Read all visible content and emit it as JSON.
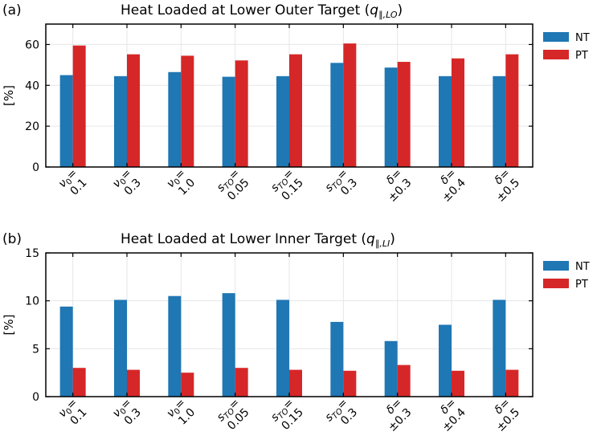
{
  "chart_data": [
    {
      "type": "bar",
      "panel": "(a)",
      "title": "Heat Loaded at Lower Outer Target (q∥,LO)",
      "title_main": "Heat Loaded at Lower Outer Target (",
      "title_q": "q",
      "title_sub": "∥,LO",
      "title_close": ")",
      "ylabel": "[%]",
      "ylim": [
        0,
        70
      ],
      "yticks": [
        0,
        20,
        40,
        60
      ],
      "categories": [
        {
          "sym": "ν",
          "sub": "0",
          "eq": "=",
          "val": "0.1"
        },
        {
          "sym": "ν",
          "sub": "0",
          "eq": "=",
          "val": "0.3"
        },
        {
          "sym": "ν",
          "sub": "0",
          "eq": "=",
          "val": "1.0"
        },
        {
          "sym": "s",
          "sub": "TO",
          "eq": "=",
          "val": "0.05"
        },
        {
          "sym": "s",
          "sub": "TO",
          "eq": "=",
          "val": "0.15"
        },
        {
          "sym": "s",
          "sub": "TO",
          "eq": "=",
          "val": "0.3"
        },
        {
          "sym": "δ",
          "sub": "",
          "eq": "=",
          "val": "±0.3"
        },
        {
          "sym": "δ",
          "sub": "",
          "eq": "=",
          "val": "±0.4"
        },
        {
          "sym": "δ",
          "sub": "",
          "eq": "=",
          "val": "±0.5"
        }
      ],
      "series": [
        {
          "name": "NT",
          "color": "#1f77b4",
          "values": [
            45,
            44.5,
            46.5,
            44.2,
            44.5,
            51,
            48.7,
            44.5,
            44.5
          ]
        },
        {
          "name": "PT",
          "color": "#d62728",
          "values": [
            59.5,
            55.2,
            54.5,
            52.2,
            55.2,
            60.5,
            51.5,
            53.2,
            55.2
          ]
        }
      ],
      "legend": "upper-right-outside"
    },
    {
      "type": "bar",
      "panel": "(b)",
      "title": "Heat Loaded at Lower Inner Target (q∥,LI)",
      "title_main": "Heat Loaded at Lower Inner Target (",
      "title_q": "q",
      "title_sub": "∥,LI",
      "title_close": ")",
      "ylabel": "[%]",
      "ylim": [
        0,
        15
      ],
      "yticks": [
        0,
        5,
        10,
        15
      ],
      "categories": [
        {
          "sym": "ν",
          "sub": "0",
          "eq": "=",
          "val": "0.1"
        },
        {
          "sym": "ν",
          "sub": "0",
          "eq": "=",
          "val": "0.3"
        },
        {
          "sym": "ν",
          "sub": "0",
          "eq": "=",
          "val": "1.0"
        },
        {
          "sym": "s",
          "sub": "TO",
          "eq": "=",
          "val": "0.05"
        },
        {
          "sym": "s",
          "sub": "TO",
          "eq": "=",
          "val": "0.15"
        },
        {
          "sym": "s",
          "sub": "TO",
          "eq": "=",
          "val": "0.3"
        },
        {
          "sym": "δ",
          "sub": "",
          "eq": "=",
          "val": "±0.3"
        },
        {
          "sym": "δ",
          "sub": "",
          "eq": "=",
          "val": "±0.4"
        },
        {
          "sym": "δ",
          "sub": "",
          "eq": "=",
          "val": "±0.5"
        }
      ],
      "series": [
        {
          "name": "NT",
          "color": "#1f77b4",
          "values": [
            9.4,
            10.1,
            10.5,
            10.8,
            10.1,
            7.8,
            5.8,
            7.5,
            10.1
          ]
        },
        {
          "name": "PT",
          "color": "#d62728",
          "values": [
            3.0,
            2.8,
            2.5,
            3.0,
            2.8,
            2.7,
            3.3,
            2.7,
            2.8
          ]
        }
      ],
      "legend": "upper-right-outside"
    }
  ]
}
